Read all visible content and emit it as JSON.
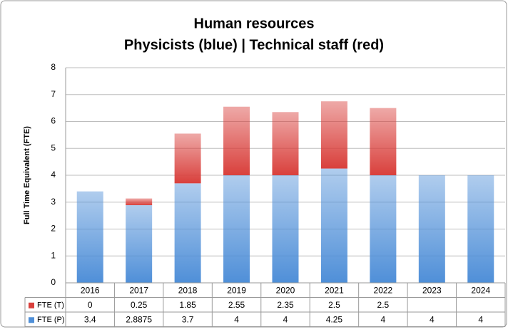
{
  "chart_data": {
    "type": "stacked-bar",
    "title": "Human resources",
    "subtitle": "Physicists (blue) | Technical staff (red)",
    "y_label": "Full Time Equivalent (FTE)",
    "categories": [
      "2016",
      "2017",
      "2018",
      "2019",
      "2020",
      "2021",
      "2022",
      "2023",
      "2024"
    ],
    "series": [
      {
        "name": "FTE (P)",
        "color": "#4f8fd8",
        "values": [
          3.4,
          2.8875,
          3.7,
          4,
          4,
          4.25,
          4,
          4,
          4
        ]
      },
      {
        "name": "FTE (T)",
        "color": "#d9403c",
        "values": [
          0,
          0.25,
          1.85,
          2.55,
          2.35,
          2.5,
          2.5,
          null,
          null
        ]
      }
    ],
    "ylim": [
      0,
      8
    ],
    "yticks": [
      0,
      1,
      2,
      3,
      4,
      5,
      6,
      7,
      8
    ],
    "grid": true,
    "data_table": true
  }
}
